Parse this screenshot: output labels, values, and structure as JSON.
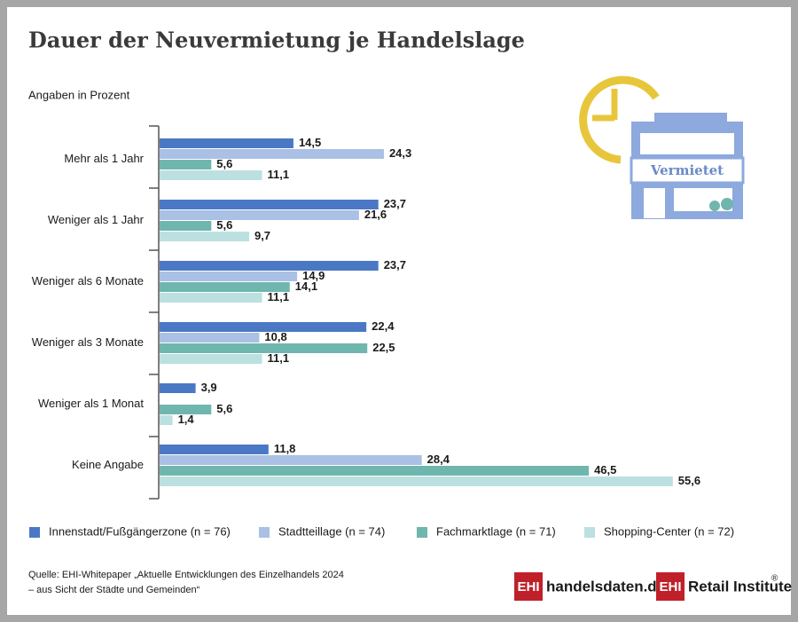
{
  "chart_data": {
    "type": "hbar",
    "title": "Dauer der Neuvermietung je Handelslage",
    "subtitle": "Angaben in Prozent",
    "categories": [
      "Mehr als 1 Jahr",
      "Weniger als 1 Jahr",
      "Weniger als 6 Monate",
      "Weniger als 3 Monate",
      "Weniger als 1 Monat",
      "Keine Angabe"
    ],
    "series": [
      {
        "name": "Innenstadt/Fußgängerzone (n = 76)",
        "color": "#4a78c4",
        "values": [
          14.5,
          23.7,
          23.7,
          22.4,
          3.9,
          11.8
        ],
        "value_labels": [
          "14,5",
          "23,7",
          "23,7",
          "22,4",
          "3,9",
          "11,8"
        ]
      },
      {
        "name": "Stadtteillage (n = 74)",
        "color": "#aac0e4",
        "values": [
          24.3,
          21.6,
          14.9,
          10.8,
          null,
          28.4
        ],
        "value_labels": [
          "24,3",
          "21,6",
          "14,9",
          "10,8",
          null,
          "28,4"
        ]
      },
      {
        "name": "Fachmarktlage (n = 71)",
        "color": "#6fb6ae",
        "values": [
          5.6,
          5.6,
          14.1,
          22.5,
          5.6,
          46.5
        ],
        "value_labels": [
          "5,6",
          "5,6",
          "14,1",
          "22,5",
          "5,6",
          "46,5"
        ]
      },
      {
        "name": "Shopping-Center (n = 72)",
        "color": "#bce0e0",
        "values": [
          11.1,
          9.7,
          11.1,
          11.1,
          1.4,
          55.6
        ],
        "value_labels": [
          "11,1",
          "9,7",
          "11,1",
          "11,1",
          "1,4",
          "55,6"
        ]
      }
    ]
  },
  "icon": {
    "label": "Vermietet"
  },
  "source": [
    "Quelle: EHI-Whitepaper „Aktuelle Entwicklungen des Einzelhandels 2024",
    "– aus Sicht der Städte und Gemeinden“"
  ],
  "logos": [
    {
      "mark": "EHI",
      "text": "handelsdaten.de"
    },
    {
      "mark": "EHI",
      "text": "Retail Institute",
      "sup": "®"
    }
  ]
}
